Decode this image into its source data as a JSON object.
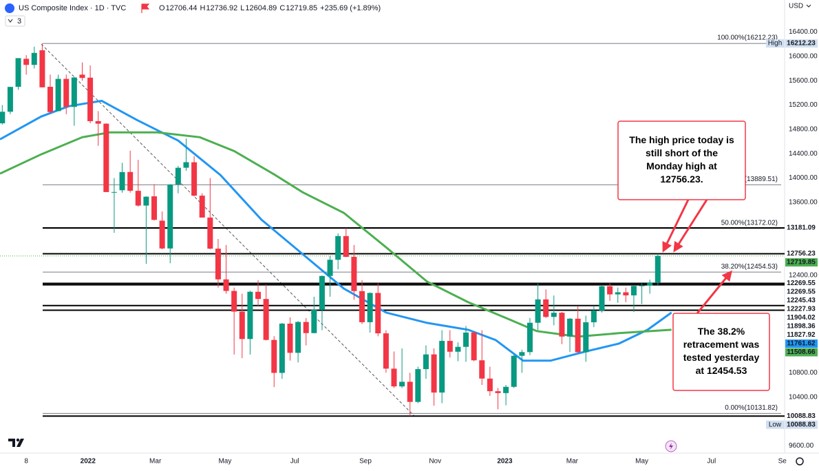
{
  "chart_data": {
    "type": "candlestick",
    "title": "US Composite Index · 1D · TVC",
    "ohlc": [
      {
        "label": "O",
        "value": 12706.44
      },
      {
        "label": "H",
        "value": 12736.92
      },
      {
        "label": "L",
        "value": 12604.89
      },
      {
        "label": "C",
        "value": 12719.85
      }
    ],
    "change": "+235.69 (+1.89%)",
    "indicators_count": "3",
    "currency": "USD",
    "up_color": "#089981",
    "down_color": "#f23645",
    "x": [
      -21,
      -14,
      -7,
      0,
      7,
      14,
      21,
      28,
      35,
      42,
      49,
      56,
      63,
      70,
      77,
      84,
      91,
      98,
      105,
      112,
      119,
      126,
      133,
      140,
      147,
      154,
      161,
      168,
      175,
      182,
      189,
      196,
      203,
      210,
      217,
      224,
      231,
      238,
      245,
      252,
      259,
      266,
      273,
      280,
      287,
      294,
      301,
      308,
      315,
      322,
      329,
      336,
      343,
      350,
      357,
      364,
      371,
      378,
      385,
      392,
      399,
      406,
      413,
      420,
      427,
      434,
      441,
      448,
      455,
      462,
      469,
      476,
      483,
      490,
      497,
      504,
      511,
      518,
      525,
      532,
      539,
      546,
      553
    ],
    "open": [
      14900,
      15090,
      15500,
      15960,
      15860,
      16100,
      15500,
      15100,
      15630,
      15170,
      15700,
      15650,
      14935,
      14894,
      13770,
      13800,
      14100,
      13790,
      13548,
      13700,
      13300,
      12843,
      13894,
      14170,
      14260,
      13711,
      13351,
      12840,
      12335,
      12145,
      11805,
      11355,
      12131,
      12013,
      11340,
      10798,
      11608,
      11128,
      11635,
      11452,
      11834,
      12391,
      12657,
      13047,
      12705,
      12142,
      11631,
      12112,
      11448,
      10868,
      10576,
      10652,
      10321,
      10860,
      11102,
      10475,
      11324,
      11146,
      11226,
      11461,
      11005,
      10705,
      10497,
      10466,
      10569,
      11079,
      11140,
      11622,
      12006,
      11718,
      11787,
      11395,
      11689,
      11138,
      11630,
      11823,
      12222,
      12088,
      12123,
      12072,
      12227,
      12235,
      12284
    ],
    "high": [
      15200,
      15500,
      15970,
      16020,
      16160,
      16212,
      15700,
      15700,
      15700,
      15660,
      15900,
      15850,
      15100,
      14900,
      14000,
      14250,
      14450,
      14300,
      13700,
      13900,
      13450,
      13900,
      14200,
      14650,
      14360,
      13750,
      14000,
      13000,
      12900,
      12200,
      12100,
      12150,
      12320,
      12250,
      11400,
      11620,
      11710,
      11650,
      11700,
      12050,
      12400,
      12720,
      13090,
      13180,
      12900,
      12320,
      12120,
      12270,
      11500,
      11150,
      11200,
      10800,
      10900,
      11250,
      11200,
      11500,
      11500,
      11300,
      11570,
      11480,
      11500,
      10900,
      10550,
      10600,
      11100,
      11180,
      11700,
      12270,
      12170,
      12070,
      11800,
      11700,
      11900,
      11740,
      11900,
      12230,
      12270,
      12200,
      12200,
      12230,
      12270,
      12330,
      12756
    ],
    "low": [
      14880,
      15050,
      15450,
      15700,
      15800,
      15490,
      15050,
      15100,
      15050,
      14860,
      15600,
      14900,
      14530,
      13770,
      13100,
      13760,
      13760,
      13530,
      12590,
      13300,
      12830,
      12600,
      13750,
      14120,
      13700,
      13350,
      12830,
      12200,
      12100,
      11100,
      11040,
      11100,
      11900,
      11330,
      10565,
      10700,
      11000,
      10970,
      11250,
      11450,
      11500,
      12050,
      12500,
      12700,
      12000,
      11600,
      11460,
      11400,
      10800,
      10550,
      10550,
      10088,
      10300,
      10700,
      10260,
      10300,
      11050,
      10990,
      10980,
      10990,
      10600,
      10420,
      10200,
      10266,
      10550,
      10800,
      11090,
      11500,
      11700,
      11580,
      11270,
      11140,
      11130,
      10980,
      11550,
      11790,
      11980,
      11950,
      11960,
      11800,
      11930,
      12100,
      12230
    ],
    "close": [
      15090,
      15498,
      15971,
      15860,
      16057,
      15491,
      15085,
      15630,
      15170,
      15653,
      15645,
      14935,
      14894,
      13770,
      13771,
      14098,
      13791,
      13548,
      13694,
      13313,
      12843,
      13894,
      14169,
      14261,
      13711,
      13351,
      12840,
      12335,
      12145,
      11805,
      11355,
      12131,
      12013,
      11340,
      10798,
      11608,
      11128,
      11635,
      11452,
      11834,
      12391,
      12657,
      13047,
      12705,
      12142,
      11631,
      12112,
      11448,
      10868,
      10576,
      10652,
      10321,
      10860,
      11102,
      10475,
      11324,
      11146,
      11226,
      11461,
      11005,
      10705,
      10497,
      10466,
      10569,
      11079,
      11140,
      11622,
      12006,
      11718,
      11787,
      11395,
      11689,
      11138,
      11630,
      11823,
      12222,
      12088,
      12123,
      12072,
      12227,
      12235,
      12284,
      12720
    ],
    "series": [
      {
        "color": "#2196f3",
        "x": [
          -23,
          13,
          37,
          66,
          97,
          133,
          170,
          206,
          242,
          278,
          315,
          351,
          387,
          411,
          435,
          459,
          489,
          519,
          544,
          565
        ],
        "values": [
          14637,
          15010,
          15180,
          15270,
          14954,
          14615,
          14050,
          13315,
          12750,
          12185,
          11790,
          11620,
          11507,
          11338,
          10999,
          10999,
          11146,
          11281,
          11507,
          11790
        ]
      },
      {
        "color": "#4caf50",
        "x": [
          -23,
          13,
          49,
          73,
          115,
          152,
          182,
          218,
          242,
          278,
          315,
          351,
          387,
          423,
          447,
          483,
          519,
          565
        ],
        "values": [
          14072,
          14389,
          14671,
          14750,
          14750,
          14671,
          14445,
          14050,
          13767,
          13428,
          12863,
          12298,
          11959,
          11677,
          11485,
          11394,
          11451,
          11507
        ]
      }
    ],
    "fib_levels": [
      {
        "label": "100.00%(16212.23)",
        "value": 16212.23
      },
      {
        "label": "(13889.51)",
        "value": 13889.51
      },
      {
        "label": "50.00%(13172.02)",
        "value": 13172.02
      },
      {
        "label": "38.20%(12454.53)",
        "value": 12454.53
      },
      {
        "label": "0.00%(10131.82)",
        "value": 10131.82
      }
    ],
    "levels": [
      13181.09,
      12756.23,
      12269.55,
      12245.43,
      11904.02,
      11827.92,
      10088.83
    ],
    "price_labels": [
      {
        "value": 16212.23,
        "tag": "High",
        "color": "#d1dff0"
      },
      {
        "value": 13181.09
      },
      {
        "value": 12756.23
      },
      {
        "value": 12719.85,
        "color": "#4caf50"
      },
      {
        "value": 12269.55
      },
      {
        "value": 12269.55
      },
      {
        "value": 12245.43
      },
      {
        "value": 12227.93
      },
      {
        "value": 11904.02
      },
      {
        "value": 11898.36
      },
      {
        "value": 11827.92
      },
      {
        "value": 11761.62,
        "color": "#2196f3"
      },
      {
        "value": 11508.66,
        "color": "#4caf50"
      },
      {
        "value": 10088.83
      },
      {
        "value": 10088.83,
        "tag": "Low",
        "color": "#d1dff0"
      }
    ],
    "xlim": [
      -23,
      664
    ],
    "ylim": [
      9480,
      16700
    ],
    "xticks": [
      {
        "value": 0,
        "label": "8"
      },
      {
        "value": 54,
        "label": "2022"
      },
      {
        "value": 113,
        "label": "Mar"
      },
      {
        "value": 174,
        "label": "May"
      },
      {
        "value": 235,
        "label": "Jul"
      },
      {
        "value": 297,
        "label": "Sep"
      },
      {
        "value": 358,
        "label": "Nov"
      },
      {
        "value": 419,
        "label": "2023"
      },
      {
        "value": 478,
        "label": "Mar"
      },
      {
        "value": 539,
        "label": "May"
      },
      {
        "value": 600,
        "label": "Jul"
      },
      {
        "value": 662,
        "label": "Se"
      }
    ],
    "yticks": [
      {
        "value": 16400,
        "label": "16400.00"
      },
      {
        "value": 16000,
        "label": "16000.00"
      },
      {
        "value": 15600,
        "label": "15600.00"
      },
      {
        "value": 15200,
        "label": "15200.00"
      },
      {
        "value": 14800,
        "label": "14800.00"
      },
      {
        "value": 14400,
        "label": "14400.00"
      },
      {
        "value": 14000,
        "label": "14000.00"
      },
      {
        "value": 13600,
        "label": "13600.00"
      },
      {
        "value": 12400,
        "label": "12400.00"
      },
      {
        "value": 10800,
        "label": "10800.00"
      },
      {
        "value": 10400,
        "label": "10400.00"
      },
      {
        "value": 9600,
        "label": "9600.00"
      }
    ],
    "annotations": [
      {
        "lines": [
          "The high price today is",
          "still short of the",
          "Monday high at",
          "12756.23."
        ]
      },
      {
        "lines": [
          "The 38.2%",
          "retracement was",
          "tested yesterday",
          "at 12454.53"
        ]
      }
    ]
  }
}
